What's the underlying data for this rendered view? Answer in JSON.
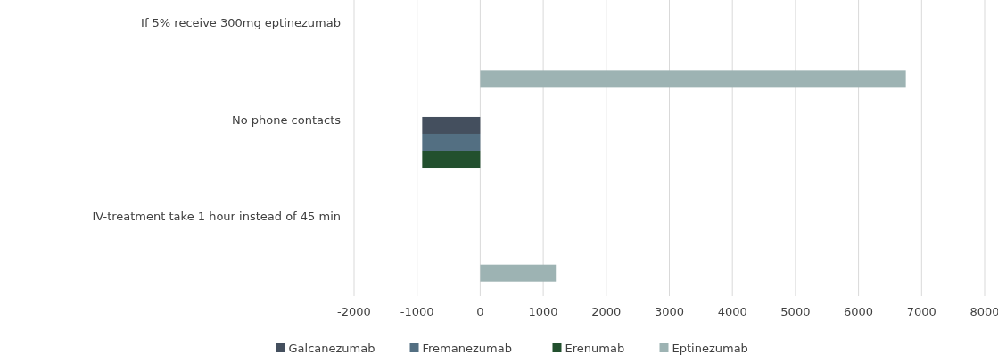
{
  "chart_data": {
    "type": "bar",
    "orientation": "horizontal",
    "categories": [
      "If 5% receive 300mg eptinezumab",
      "No phone contacts",
      "IV-treatment take 1 hour instead of 45 min"
    ],
    "series": [
      {
        "name": "Galcanezumab",
        "color": "#444f5e",
        "values": [
          null,
          -920,
          null
        ]
      },
      {
        "name": "Fremanezumab",
        "color": "#536f82",
        "values": [
          null,
          -920,
          null
        ]
      },
      {
        "name": "Erenumab",
        "color": "#22502e",
        "values": [
          null,
          -920,
          null
        ]
      },
      {
        "name": "Eptinezumab",
        "color": "#9db3b3",
        "values": [
          6750,
          null,
          1200
        ]
      }
    ],
    "xlim": [
      -2000,
      8000
    ],
    "xticks": [
      -2000,
      -1000,
      0,
      1000,
      2000,
      3000,
      4000,
      5000,
      6000,
      7000,
      8000
    ],
    "grid": "x",
    "legend": "bottom"
  }
}
